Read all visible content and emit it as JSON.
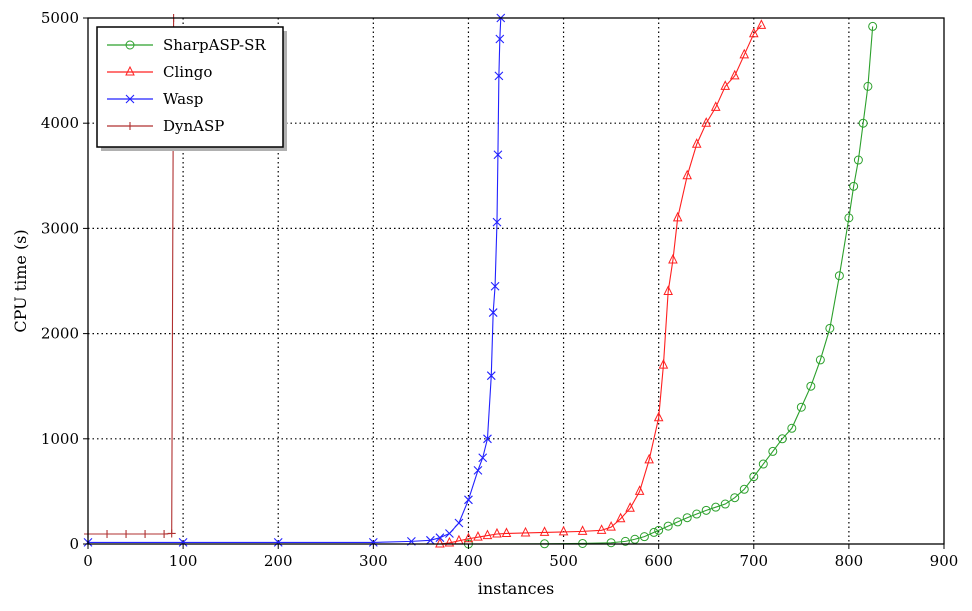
{
  "chart_data": {
    "type": "line",
    "title": "",
    "xlabel": "instances",
    "ylabel": "CPU time (s)",
    "xlim": [
      0,
      900
    ],
    "ylim": [
      0,
      5000
    ],
    "xticks": [
      0,
      100,
      200,
      300,
      400,
      500,
      600,
      700,
      800,
      900
    ],
    "yticks": [
      0,
      1000,
      2000,
      3000,
      4000,
      5000
    ],
    "grid": true,
    "legend_position": "top-left",
    "series": [
      {
        "name": "SharpASP-SR",
        "color": "#2ca02c",
        "marker": "circle",
        "points": [
          [
            400,
            0
          ],
          [
            480,
            2
          ],
          [
            520,
            5
          ],
          [
            550,
            12
          ],
          [
            565,
            25
          ],
          [
            575,
            45
          ],
          [
            585,
            70
          ],
          [
            595,
            110
          ],
          [
            600,
            130
          ],
          [
            610,
            170
          ],
          [
            620,
            210
          ],
          [
            630,
            250
          ],
          [
            640,
            285
          ],
          [
            650,
            320
          ],
          [
            660,
            350
          ],
          [
            670,
            380
          ],
          [
            680,
            440
          ],
          [
            690,
            520
          ],
          [
            700,
            640
          ],
          [
            710,
            760
          ],
          [
            720,
            880
          ],
          [
            730,
            1000
          ],
          [
            740,
            1100
          ],
          [
            750,
            1300
          ],
          [
            760,
            1500
          ],
          [
            770,
            1750
          ],
          [
            780,
            2050
          ],
          [
            790,
            2550
          ],
          [
            800,
            3100
          ],
          [
            805,
            3400
          ],
          [
            810,
            3650
          ],
          [
            815,
            4000
          ],
          [
            820,
            4350
          ],
          [
            825,
            4920
          ]
        ]
      },
      {
        "name": "Clingo",
        "color": "#ff2020",
        "marker": "triangle",
        "points": [
          [
            370,
            0
          ],
          [
            380,
            10
          ],
          [
            390,
            30
          ],
          [
            400,
            50
          ],
          [
            410,
            65
          ],
          [
            420,
            80
          ],
          [
            430,
            95
          ],
          [
            440,
            100
          ],
          [
            460,
            105
          ],
          [
            480,
            110
          ],
          [
            500,
            115
          ],
          [
            520,
            120
          ],
          [
            540,
            130
          ],
          [
            550,
            160
          ],
          [
            560,
            240
          ],
          [
            570,
            340
          ],
          [
            580,
            500
          ],
          [
            590,
            800
          ],
          [
            600,
            1200
          ],
          [
            605,
            1700
          ],
          [
            610,
            2400
          ],
          [
            615,
            2700
          ],
          [
            620,
            3100
          ],
          [
            630,
            3500
          ],
          [
            640,
            3800
          ],
          [
            650,
            4000
          ],
          [
            660,
            4150
          ],
          [
            670,
            4350
          ],
          [
            680,
            4450
          ],
          [
            690,
            4650
          ],
          [
            700,
            4850
          ],
          [
            708,
            4930
          ]
        ]
      },
      {
        "name": "Wasp",
        "color": "#2222ff",
        "marker": "x",
        "points": [
          [
            0,
            15
          ],
          [
            100,
            15
          ],
          [
            200,
            15
          ],
          [
            300,
            15
          ],
          [
            340,
            25
          ],
          [
            360,
            35
          ],
          [
            370,
            60
          ],
          [
            380,
            100
          ],
          [
            390,
            200
          ],
          [
            400,
            420
          ],
          [
            410,
            700
          ],
          [
            415,
            820
          ],
          [
            420,
            1000
          ],
          [
            424,
            1600
          ],
          [
            426,
            2200
          ],
          [
            428,
            2450
          ],
          [
            430,
            3060
          ],
          [
            431,
            3700
          ],
          [
            432,
            4450
          ],
          [
            433,
            4800
          ],
          [
            434,
            5000
          ]
        ]
      },
      {
        "name": "DynASP",
        "color": "#b03030",
        "marker": "plus",
        "points": [
          [
            0,
            95
          ],
          [
            20,
            95
          ],
          [
            40,
            95
          ],
          [
            60,
            95
          ],
          [
            80,
            95
          ],
          [
            88,
            100
          ],
          [
            90,
            5000
          ]
        ]
      }
    ]
  }
}
